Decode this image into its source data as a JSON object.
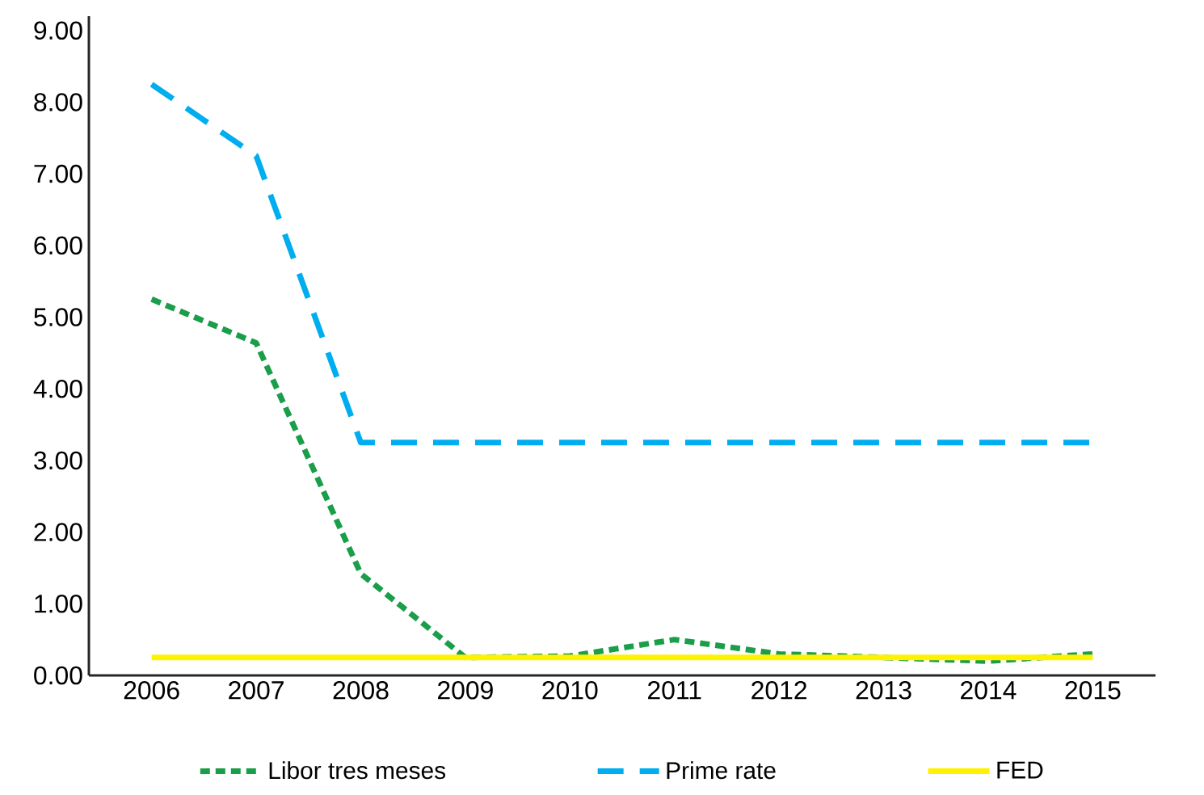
{
  "chart_data": {
    "type": "line",
    "categories": [
      "2006",
      "2007",
      "2008",
      "2009",
      "2010",
      "2011",
      "2012",
      "2013",
      "2014",
      "2015"
    ],
    "series": [
      {
        "name": "Libor tres meses",
        "color": "#1a9e4a",
        "line_style": "dotted",
        "values": [
          5.25,
          4.64,
          1.42,
          0.25,
          0.27,
          0.5,
          0.3,
          0.25,
          0.2,
          0.3
        ]
      },
      {
        "name": "Prime rate",
        "color": "#00aeef",
        "line_style": "dashed",
        "values": [
          8.25,
          7.25,
          3.25,
          3.25,
          3.25,
          3.25,
          3.25,
          3.25,
          3.25,
          3.25
        ]
      },
      {
        "name": "FED",
        "color": "#fff200",
        "line_style": "solid",
        "values": [
          0.25,
          0.25,
          0.25,
          0.25,
          0.25,
          0.25,
          0.25,
          0.25,
          0.25,
          0.25
        ]
      }
    ],
    "ylim": [
      0,
      9.2
    ],
    "yticks": [
      {
        "value": 0,
        "label": "0.00"
      },
      {
        "value": 1,
        "label": "1.00"
      },
      {
        "value": 2,
        "label": "2.00"
      },
      {
        "value": 3,
        "label": "3.00"
      },
      {
        "value": 4,
        "label": "4.00"
      },
      {
        "value": 5,
        "label": "5.00"
      },
      {
        "value": 6,
        "label": "6.00"
      },
      {
        "value": 7,
        "label": "7.00"
      },
      {
        "value": 8,
        "label": "8.00"
      },
      {
        "value": 9,
        "label": "9.00"
      }
    ],
    "grid": false,
    "legend": "bottom"
  }
}
